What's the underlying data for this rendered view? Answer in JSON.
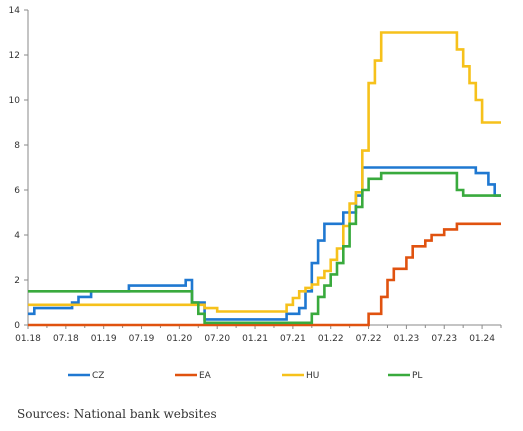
{
  "chart_data": {
    "type": "line",
    "step": true,
    "x_unit": "month",
    "x_start": "2018-01",
    "xlim": [
      "2018-01",
      "2024-04"
    ],
    "ylim": [
      0,
      14
    ],
    "y_ticks": [
      0,
      2,
      4,
      6,
      8,
      10,
      12,
      14
    ],
    "x_tick_labels": [
      "01.18",
      "07.18",
      "01.19",
      "07.19",
      "01.20",
      "07.20",
      "01.21",
      "07.21",
      "01.22",
      "07.22",
      "01.23",
      "07.23",
      "01.24"
    ],
    "grid": false,
    "legend_position": "bottom",
    "series": [
      {
        "name": "CZ",
        "color": "#1f78d1",
        "points": [
          [
            "2018-01",
            0.5
          ],
          [
            "2018-02",
            0.75
          ],
          [
            "2018-08",
            1.0
          ],
          [
            "2018-09",
            1.25
          ],
          [
            "2018-11",
            1.5
          ],
          [
            "2019-05",
            1.75
          ],
          [
            "2020-02",
            2.0
          ],
          [
            "2020-03",
            1.75
          ],
          [
            "2020-03",
            1.0
          ],
          [
            "2020-05",
            0.25
          ],
          [
            "2021-06",
            0.5
          ],
          [
            "2021-08",
            0.75
          ],
          [
            "2021-09",
            1.5
          ],
          [
            "2021-10",
            2.75
          ],
          [
            "2021-11",
            3.75
          ],
          [
            "2021-12",
            4.5
          ],
          [
            "2022-02",
            4.5
          ],
          [
            "2022-03",
            5.0
          ],
          [
            "2022-05",
            5.75
          ],
          [
            "2022-06",
            7.0
          ],
          [
            "2023-12",
            6.75
          ],
          [
            "2024-02",
            6.25
          ],
          [
            "2024-03",
            5.75
          ],
          [
            "2024-04",
            5.75
          ]
        ]
      },
      {
        "name": "EA",
        "color": "#e0520f",
        "points": [
          [
            "2018-01",
            0.0
          ],
          [
            "2022-07",
            0.5
          ],
          [
            "2022-09",
            1.25
          ],
          [
            "2022-10",
            2.0
          ],
          [
            "2022-11",
            2.5
          ],
          [
            "2023-01",
            3.0
          ],
          [
            "2023-02",
            3.5
          ],
          [
            "2023-04",
            3.75
          ],
          [
            "2023-05",
            4.0
          ],
          [
            "2023-07",
            4.25
          ],
          [
            "2023-09",
            4.5
          ],
          [
            "2024-04",
            4.5
          ]
        ]
      },
      {
        "name": "HU",
        "color": "#f6c11b",
        "points": [
          [
            "2018-01",
            0.9
          ],
          [
            "2020-05",
            0.75
          ],
          [
            "2020-07",
            0.6
          ],
          [
            "2021-06",
            0.9
          ],
          [
            "2021-07",
            1.2
          ],
          [
            "2021-08",
            1.5
          ],
          [
            "2021-09",
            1.65
          ],
          [
            "2021-10",
            1.8
          ],
          [
            "2021-11",
            2.1
          ],
          [
            "2021-12",
            2.4
          ],
          [
            "2022-01",
            2.9
          ],
          [
            "2022-02",
            3.4
          ],
          [
            "2022-03",
            4.4
          ],
          [
            "2022-04",
            5.4
          ],
          [
            "2022-05",
            5.9
          ],
          [
            "2022-06",
            7.75
          ],
          [
            "2022-07",
            10.75
          ],
          [
            "2022-08",
            11.75
          ],
          [
            "2022-09",
            13.0
          ],
          [
            "2023-09",
            12.25
          ],
          [
            "2023-10",
            11.5
          ],
          [
            "2023-11",
            10.75
          ],
          [
            "2023-12",
            10.0
          ],
          [
            "2024-01",
            9.0
          ],
          [
            "2024-04",
            9.0
          ]
        ]
      },
      {
        "name": "PL",
        "color": "#39aa3d",
        "points": [
          [
            "2018-01",
            1.5
          ],
          [
            "2020-03",
            1.0
          ],
          [
            "2020-04",
            0.5
          ],
          [
            "2020-05",
            0.1
          ],
          [
            "2021-10",
            0.5
          ],
          [
            "2021-11",
            1.25
          ],
          [
            "2021-12",
            1.75
          ],
          [
            "2022-01",
            2.25
          ],
          [
            "2022-02",
            2.75
          ],
          [
            "2022-03",
            3.5
          ],
          [
            "2022-04",
            4.5
          ],
          [
            "2022-05",
            5.25
          ],
          [
            "2022-06",
            6.0
          ],
          [
            "2022-07",
            6.5
          ],
          [
            "2022-09",
            6.75
          ],
          [
            "2023-09",
            6.0
          ],
          [
            "2023-10",
            5.75
          ],
          [
            "2024-04",
            5.75
          ]
        ]
      }
    ]
  },
  "source_note": "Sources: National bank websites"
}
